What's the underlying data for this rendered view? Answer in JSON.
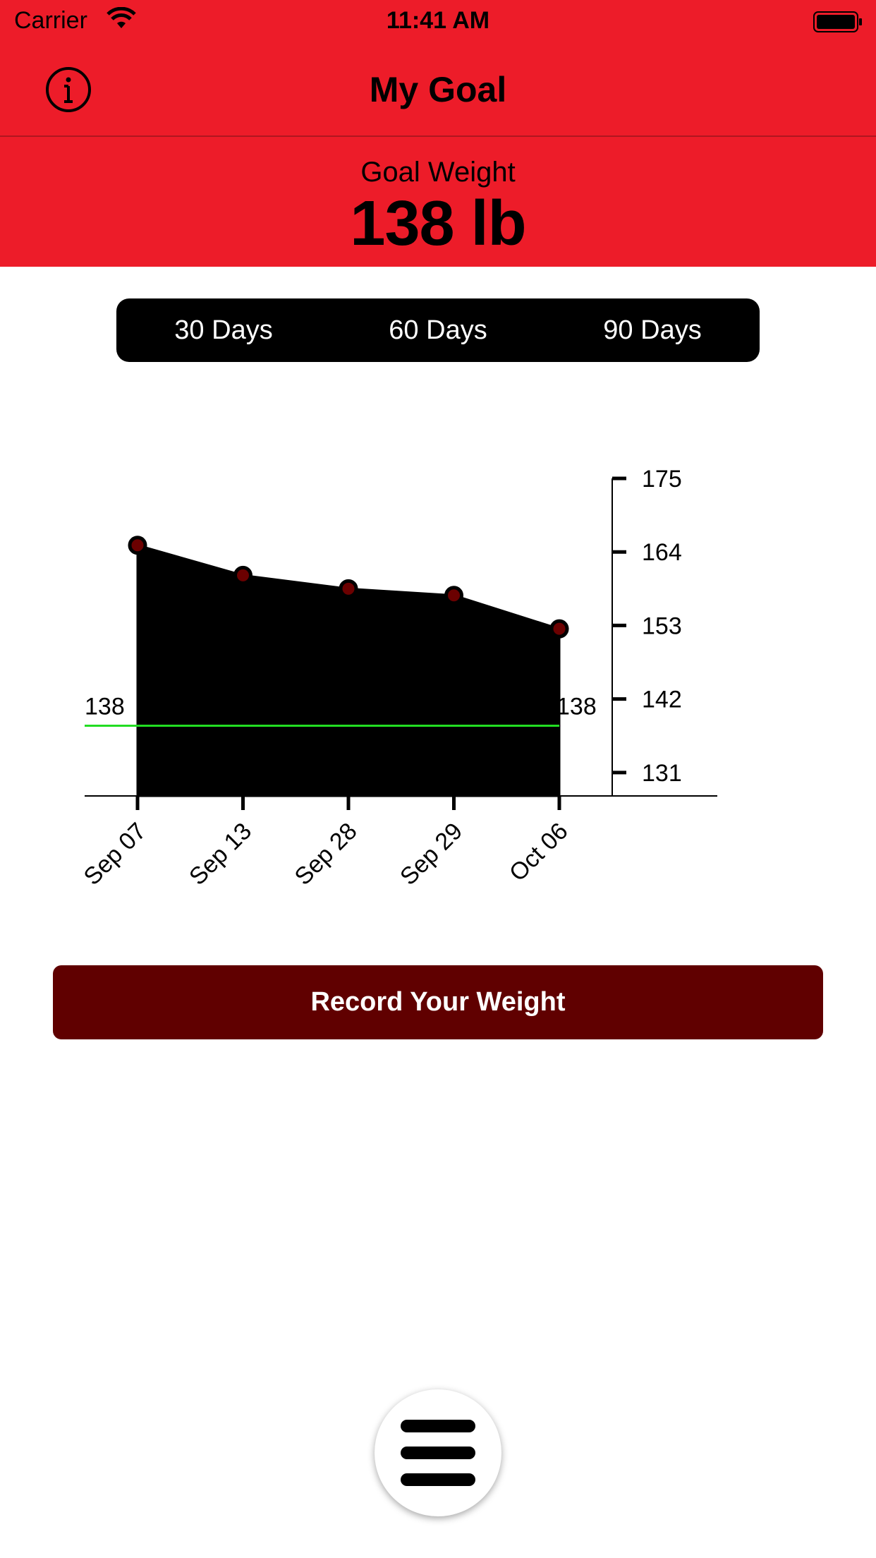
{
  "status_bar": {
    "carrier": "Carrier",
    "time": "11:41 AM",
    "icons": [
      "wifi-icon",
      "battery-icon"
    ]
  },
  "nav": {
    "title": "My Goal",
    "left_icon": "info-icon"
  },
  "goal": {
    "label": "Goal Weight",
    "value": "138 lb"
  },
  "range_tabs": [
    "30 Days",
    "60 Days",
    "90 Days"
  ],
  "chart_data": {
    "type": "area",
    "categories": [
      "Sep 07",
      "Sep 13",
      "Sep 28",
      "Sep 29",
      "Oct 06"
    ],
    "values": [
      165,
      160.5,
      158.5,
      157.5,
      152.5
    ],
    "ylim": [
      127.5,
      175
    ],
    "yticks": [
      175,
      164,
      153,
      142,
      131
    ],
    "y_axis_position": "right",
    "goal_line": {
      "value": 138,
      "label_left": "138",
      "label_right": "138",
      "color": "#22dd22"
    },
    "area_color": "#000000",
    "point_color": "#6b0000",
    "grid": false
  },
  "record_button": {
    "label": "Record Your Weight"
  },
  "menu_button": {
    "icon": "hamburger-menu-icon"
  },
  "colors": {
    "header_red": "#ed1c29",
    "button_dark_red": "#600000",
    "segmented_bg": "#000000"
  }
}
